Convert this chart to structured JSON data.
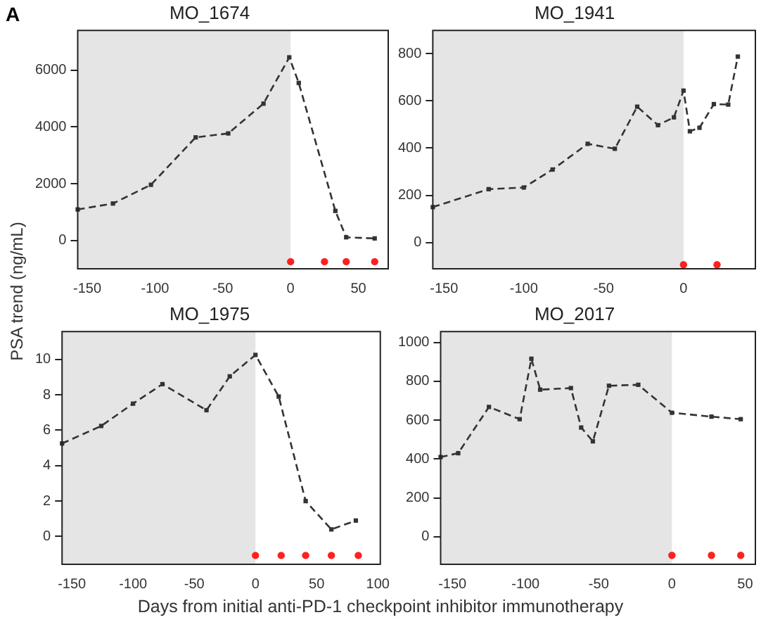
{
  "chart_data": [
    {
      "type": "line",
      "title": "MO_1674",
      "ylabel": "PSA trend (ng/mL)",
      "annotations": [
        "A"
      ],
      "xlim": [
        -157,
        72
      ],
      "ylim": [
        -1000,
        7400
      ],
      "xticks": [
        -150,
        -100,
        -50,
        0,
        50
      ],
      "yticks": [
        0,
        2000,
        4000,
        6000
      ],
      "grid": false,
      "legend": false,
      "marker": "square",
      "line_style": "dashed",
      "bands": [
        {
          "axis": "x",
          "from": -157,
          "to": 0,
          "color": "#e5e5e5"
        }
      ],
      "series": [
        {
          "type": "line",
          "color": "#333333",
          "x": [
            -157,
            -131,
            -103,
            -70,
            -46,
            -20,
            -1,
            6,
            33,
            41,
            62
          ],
          "values": [
            1090,
            1300,
            1960,
            3630,
            3770,
            4820,
            6450,
            5550,
            1040,
            110,
            70
          ]
        },
        {
          "type": "scatter",
          "color": "#ff2020",
          "marker": "circle",
          "x": [
            0,
            25,
            41,
            62
          ],
          "values": [
            -750,
            -750,
            -750,
            -750
          ]
        }
      ]
    },
    {
      "type": "line",
      "title": "MO_1941",
      "xlim": [
        -157,
        45
      ],
      "ylim": [
        -111,
        898
      ],
      "xticks": [
        -150,
        -100,
        -50,
        0
      ],
      "yticks": [
        0,
        200,
        400,
        600,
        800
      ],
      "grid": false,
      "legend": false,
      "marker": "square",
      "line_style": "dashed",
      "bands": [
        {
          "axis": "x",
          "from": -157,
          "to": 0,
          "color": "#e5e5e5"
        }
      ],
      "series": [
        {
          "type": "line",
          "color": "#333333",
          "x": [
            -157,
            -122,
            -100,
            -82,
            -60,
            -43,
            -29,
            -16,
            -6,
            0,
            4,
            10,
            19,
            28,
            34
          ],
          "values": [
            150,
            226,
            233,
            309,
            418,
            397,
            575,
            497,
            530,
            643,
            471,
            486,
            586,
            584,
            787
          ]
        },
        {
          "type": "scatter",
          "color": "#ff2020",
          "marker": "circle",
          "x": [
            0,
            21
          ],
          "values": [
            -94,
            -94
          ]
        }
      ]
    },
    {
      "type": "line",
      "title": "MO_1975",
      "xlabel": "Days from initial anti-PD-1 checkpoint inhibitor immunotherapy",
      "xlim": [
        -158,
        102
      ],
      "ylim": [
        -1.57,
        11.57
      ],
      "xticks": [
        -150,
        -100,
        -50,
        0,
        50,
        100
      ],
      "yticks": [
        0,
        2,
        4,
        6,
        8,
        10
      ],
      "grid": false,
      "legend": false,
      "marker": "square",
      "line_style": "dashed",
      "bands": [
        {
          "axis": "x",
          "from": -158,
          "to": 0,
          "color": "#e5e5e5"
        }
      ],
      "series": [
        {
          "type": "line",
          "color": "#333333",
          "x": [
            -158,
            -126,
            -100,
            -76,
            -40,
            -21,
            0,
            19,
            41,
            62,
            82
          ],
          "values": [
            5.25,
            6.24,
            7.5,
            8.6,
            7.13,
            9.04,
            10.25,
            7.9,
            2.0,
            0.4,
            0.9
          ]
        },
        {
          "type": "scatter",
          "color": "#ff2020",
          "marker": "circle",
          "x": [
            0,
            21,
            41,
            62,
            84
          ],
          "values": [
            -1.07,
            -1.07,
            -1.07,
            -1.07,
            -1.07
          ]
        }
      ]
    },
    {
      "type": "line",
      "title": "MO_2017",
      "xlim": [
        -158,
        57
      ],
      "ylim": [
        -142,
        1056
      ],
      "xticks": [
        -150,
        -100,
        -50,
        0,
        50
      ],
      "yticks": [
        0,
        200,
        400,
        600,
        800,
        1000
      ],
      "grid": false,
      "legend": false,
      "marker": "square",
      "line_style": "dashed",
      "bands": [
        {
          "axis": "x",
          "from": -158,
          "to": 0,
          "color": "#e5e5e5"
        }
      ],
      "series": [
        {
          "type": "line",
          "color": "#333333",
          "x": [
            -158,
            -146,
            -125,
            -104,
            -96,
            -90,
            -69,
            -62,
            -54,
            -43,
            -23,
            0,
            27,
            47
          ],
          "values": [
            410,
            430,
            668,
            605,
            916,
            757,
            765,
            562,
            491,
            777,
            782,
            638,
            618,
            605
          ]
        },
        {
          "type": "scatter",
          "color": "#ff2020",
          "marker": "circle",
          "x": [
            0,
            27,
            47
          ],
          "values": [
            -96,
            -96,
            -96
          ]
        }
      ]
    }
  ]
}
